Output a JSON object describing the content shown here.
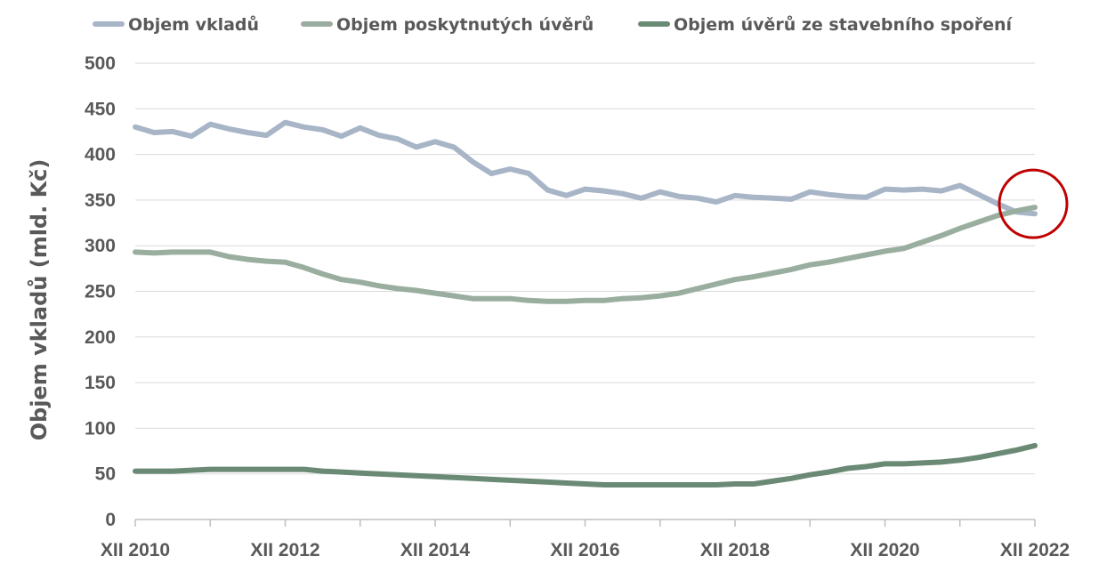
{
  "chart_data": {
    "type": "line",
    "ylabel": "Objem vkladů (mld. Kč)",
    "xlabel": "",
    "ylim": [
      0,
      500
    ],
    "yticks": [
      0,
      50,
      100,
      150,
      200,
      250,
      300,
      350,
      400,
      450,
      500
    ],
    "grid": true,
    "legend_position": "top",
    "x_tick_labels": [
      "XII 2010",
      "XII 2012",
      "XII 2014",
      "XII 2016",
      "XII 2018",
      "XII 2020",
      "XII 2022"
    ],
    "x": [
      "XII 2010",
      "III 2011",
      "VI 2011",
      "IX 2011",
      "XII 2011",
      "III 2012",
      "VI 2012",
      "IX 2012",
      "XII 2012",
      "III 2013",
      "VI 2013",
      "IX 2013",
      "XII 2013",
      "III 2014",
      "VI 2014",
      "IX 2014",
      "XII 2014",
      "III 2015",
      "VI 2015",
      "IX 2015",
      "XII 2015",
      "III 2016",
      "VI 2016",
      "IX 2016",
      "XII 2016",
      "III 2017",
      "VI 2017",
      "IX 2017",
      "XII 2017",
      "III 2018",
      "VI 2018",
      "IX 2018",
      "XII 2018",
      "III 2019",
      "VI 2019",
      "IX 2019",
      "XII 2019",
      "III 2020",
      "VI 2020",
      "IX 2020",
      "XII 2020",
      "III 2021",
      "VI 2021",
      "IX 2021",
      "XII 2021",
      "III 2022",
      "VI 2022",
      "IX 2022",
      "XII 2022"
    ],
    "series": [
      {
        "name": "Objem vkladů",
        "color": "#a7b5c7",
        "values": [
          430,
          424,
          425,
          420,
          433,
          428,
          424,
          421,
          435,
          430,
          427,
          420,
          429,
          421,
          417,
          408,
          414,
          408,
          392,
          379,
          384,
          379,
          361,
          355,
          362,
          360,
          357,
          352,
          359,
          354,
          352,
          348,
          355,
          353,
          352,
          351,
          359,
          356,
          354,
          353,
          362,
          361,
          362,
          360,
          366,
          356,
          346,
          337,
          335
        ]
      },
      {
        "name": "Objem poskytnutých úvěrů",
        "color": "#9aae9f",
        "values": [
          293,
          292,
          293,
          293,
          293,
          288,
          285,
          283,
          282,
          276,
          269,
          263,
          260,
          256,
          253,
          251,
          248,
          245,
          242,
          242,
          242,
          240,
          239,
          239,
          240,
          240,
          242,
          243,
          245,
          248,
          253,
          258,
          263,
          266,
          270,
          274,
          279,
          282,
          286,
          290,
          294,
          297,
          304,
          311,
          319,
          326,
          333,
          338,
          342
        ]
      },
      {
        "name": "Objem úvěrů ze stavebního spoření",
        "color": "#6a8a75",
        "values": [
          53,
          53,
          53,
          54,
          55,
          55,
          55,
          55,
          55,
          55,
          53,
          52,
          51,
          50,
          49,
          48,
          47,
          46,
          45,
          44,
          43,
          42,
          41,
          40,
          39,
          38,
          38,
          38,
          38,
          38,
          38,
          38,
          39,
          39,
          42,
          45,
          49,
          52,
          56,
          58,
          61,
          61,
          62,
          63,
          65,
          68,
          72,
          76,
          81
        ]
      }
    ],
    "annotation": {
      "type": "circle",
      "color": "#c00000",
      "at_index": 48,
      "at_value": 340
    }
  }
}
